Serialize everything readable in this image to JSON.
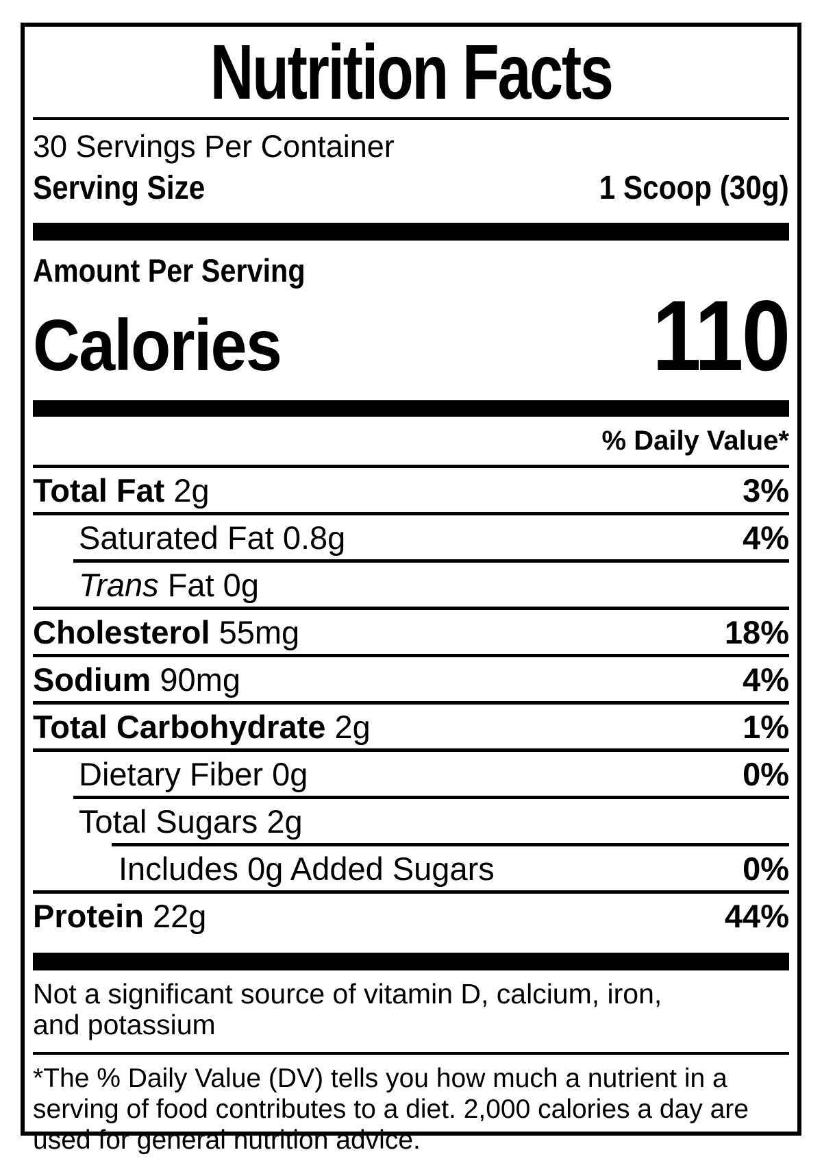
{
  "label": {
    "title": "Nutrition Facts",
    "servings_per_container": "30 Servings Per Container",
    "serving_size_label": "Serving Size",
    "serving_size_value": "1 Scoop (30g)",
    "amount_per_serving": "Amount Per Serving",
    "calories_label": "Calories",
    "calories_value": "110",
    "daily_value_header": "% Daily Value*",
    "nutrients": [
      {
        "name": "Total Fat",
        "amount": "2g",
        "dv": "3%",
        "bold": true,
        "italic": false,
        "indent": 0,
        "divider_indent": 0
      },
      {
        "name": "Saturated Fat",
        "amount": "0.8g",
        "dv": "4%",
        "bold": false,
        "italic": false,
        "indent": 1,
        "divider_indent": 0
      },
      {
        "name": "Trans",
        "amount": "Fat 0g",
        "dv": "",
        "bold": false,
        "italic": true,
        "indent": 1,
        "divider_indent": 1
      },
      {
        "name": "Cholesterol",
        "amount": "55mg",
        "dv": "18%",
        "bold": true,
        "italic": false,
        "indent": 0,
        "divider_indent": 0
      },
      {
        "name": "Sodium",
        "amount": "90mg",
        "dv": "4%",
        "bold": true,
        "italic": false,
        "indent": 0,
        "divider_indent": 0
      },
      {
        "name": "Total Carbohydrate",
        "amount": "2g",
        "dv": "1%",
        "bold": true,
        "italic": false,
        "indent": 0,
        "divider_indent": 0
      },
      {
        "name": "Dietary Fiber",
        "amount": "0g",
        "dv": "0%",
        "bold": false,
        "italic": false,
        "indent": 1,
        "divider_indent": 0
      },
      {
        "name": "Total Sugars",
        "amount": "2g",
        "dv": "",
        "bold": false,
        "italic": false,
        "indent": 1,
        "divider_indent": 1
      },
      {
        "name": "Includes 0g Added Sugars",
        "amount": "",
        "dv": "0%",
        "bold": false,
        "italic": false,
        "indent": 2,
        "divider_indent": 2
      },
      {
        "name": "Protein",
        "amount": "22g",
        "dv": "44%",
        "bold": true,
        "italic": false,
        "indent": 0,
        "divider_indent": 0
      }
    ],
    "not_significant_note": "Not a significant source of vitamin D, calcium, iron, and potassium",
    "footnote": "*The % Daily Value (DV) tells you how much a nutrient in a serving of food contributes to a diet. 2,000 calories a day are used for general nutrition advice."
  },
  "colors": {
    "text": "#000000",
    "background": "#ffffff"
  }
}
